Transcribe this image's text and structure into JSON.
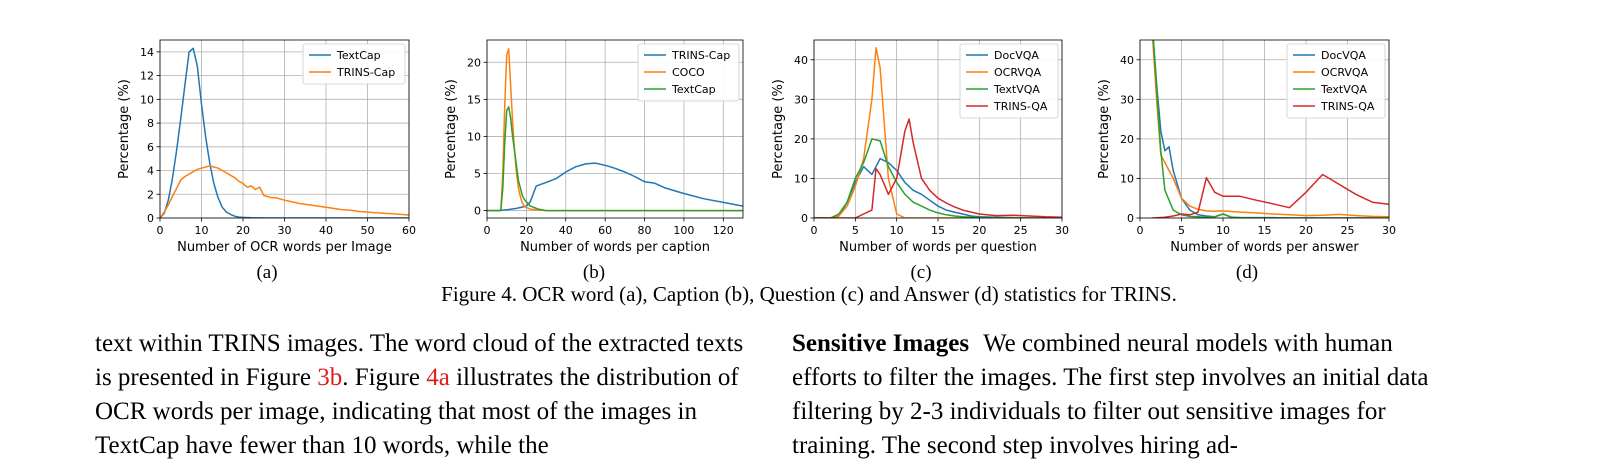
{
  "colors": {
    "blue": "#1f77b4",
    "orange": "#ff7f0e",
    "green": "#2ca02c",
    "red": "#d62728",
    "ref": "#d9211c"
  },
  "chart_data": [
    {
      "type": "line",
      "panel": "a",
      "xlabel": "Number of OCR words per Image",
      "ylabel": "Percentage (%)",
      "xlim": [
        0,
        60
      ],
      "ylim": [
        0,
        15
      ],
      "xticks": [
        0,
        10,
        20,
        30,
        40,
        50,
        60
      ],
      "yticks": [
        0,
        2,
        4,
        6,
        8,
        10,
        12,
        14
      ],
      "grid": true,
      "legend_position": "top-right",
      "series": [
        {
          "name": "TextCap",
          "color": "#1f77b4",
          "x": [
            0,
            1,
            2,
            3,
            4,
            5,
            6,
            7,
            8,
            9,
            10,
            11,
            12,
            13,
            14,
            15,
            16,
            17,
            18,
            19,
            20,
            22,
            24,
            26,
            28,
            30,
            60
          ],
          "y": [
            0,
            0.4,
            1.5,
            3.3,
            5.7,
            8.4,
            11.2,
            14.0,
            14.3,
            12.8,
            9.6,
            6.8,
            4.6,
            2.9,
            1.7,
            0.9,
            0.5,
            0.3,
            0.15,
            0.08,
            0.05,
            0.02,
            0.01,
            0,
            0,
            0,
            0
          ]
        },
        {
          "name": "TRINS-Cap",
          "color": "#ff7f0e",
          "x": [
            0,
            1,
            2,
            3,
            4,
            5,
            6,
            7,
            8,
            9,
            10,
            11,
            12,
            13,
            14,
            15,
            16,
            17,
            18,
            19,
            20,
            21,
            22,
            23,
            24,
            25,
            26,
            27,
            28,
            30,
            32,
            34,
            36,
            38,
            40,
            42,
            44,
            46,
            48,
            50,
            52,
            54,
            56,
            58,
            60
          ],
          "y": [
            0,
            0.5,
            1.1,
            1.8,
            2.5,
            3.2,
            3.5,
            3.7,
            3.9,
            4.1,
            4.2,
            4.3,
            4.4,
            4.3,
            4.2,
            4.0,
            3.8,
            3.6,
            3.4,
            3.1,
            2.9,
            2.6,
            2.7,
            2.4,
            2.6,
            1.9,
            1.8,
            1.7,
            1.7,
            1.5,
            1.35,
            1.2,
            1.1,
            1.0,
            0.9,
            0.8,
            0.7,
            0.65,
            0.55,
            0.5,
            0.45,
            0.4,
            0.35,
            0.3,
            0.25
          ]
        }
      ]
    },
    {
      "type": "line",
      "panel": "b",
      "xlabel": "Number of words per caption",
      "ylabel": "Percentage (%)",
      "xlim": [
        0,
        130
      ],
      "ylim": [
        -1,
        23
      ],
      "xticks": [
        0,
        20,
        40,
        60,
        80,
        100,
        120
      ],
      "yticks": [
        0,
        5,
        10,
        15,
        20
      ],
      "grid": true,
      "legend_position": "top-right",
      "series": [
        {
          "name": "TRINS-Cap",
          "color": "#1f77b4",
          "x": [
            0,
            5,
            10,
            15,
            20,
            22,
            25,
            30,
            35,
            40,
            45,
            50,
            55,
            60,
            65,
            70,
            75,
            80,
            85,
            90,
            95,
            100,
            110,
            120,
            130
          ],
          "y": [
            0,
            0,
            0.1,
            0.3,
            0.6,
            1.2,
            3.3,
            3.8,
            4.3,
            5.2,
            5.9,
            6.3,
            6.4,
            6.1,
            5.7,
            5.2,
            4.6,
            3.9,
            3.7,
            3.1,
            2.7,
            2.3,
            1.6,
            1.1,
            0.6
          ]
        },
        {
          "name": "COCO",
          "color": "#ff7f0e",
          "x": [
            0,
            7,
            8,
            9,
            10,
            11,
            12,
            13,
            14,
            15,
            16,
            17,
            18,
            19,
            20,
            22,
            25,
            30,
            130
          ],
          "y": [
            0,
            0,
            5,
            14,
            21,
            21.8,
            17,
            12,
            8,
            5,
            3,
            1.8,
            1.0,
            0.6,
            0.4,
            0.2,
            0.1,
            0,
            0
          ]
        },
        {
          "name": "TextCap",
          "color": "#2ca02c",
          "x": [
            0,
            7,
            8,
            9,
            10,
            11,
            12,
            13,
            14,
            15,
            16,
            17,
            18,
            19,
            20,
            21,
            22,
            24,
            26,
            28,
            30,
            130
          ],
          "y": [
            0,
            0,
            3,
            9,
            13.5,
            14,
            12.5,
            10,
            8,
            6,
            4,
            3,
            2,
            1.5,
            1.2,
            0.9,
            0.6,
            0.4,
            0.2,
            0.1,
            0,
            0
          ]
        }
      ]
    },
    {
      "type": "line",
      "panel": "c",
      "xlabel": "Number of words per question",
      "ylabel": "Percentage (%)",
      "xlim": [
        0,
        30
      ],
      "ylim": [
        0,
        45
      ],
      "xticks": [
        0,
        5,
        10,
        15,
        20,
        25,
        30
      ],
      "yticks": [
        0,
        10,
        20,
        30,
        40
      ],
      "grid": true,
      "legend_position": "top-right",
      "series": [
        {
          "name": "DocVQA",
          "color": "#1f77b4",
          "x": [
            0,
            2,
            3,
            4,
            5,
            6,
            7,
            8,
            9,
            10,
            11,
            12,
            13,
            14,
            15,
            16,
            17,
            18,
            19,
            20,
            22,
            24,
            26,
            28,
            30
          ],
          "y": [
            0,
            0,
            0.5,
            4,
            9,
            13,
            11,
            15,
            14,
            12,
            9,
            7,
            6,
            4.5,
            3,
            2,
            1.5,
            1,
            0.5,
            0.3,
            0.2,
            0.1,
            0,
            0,
            0
          ]
        },
        {
          "name": "OCRVQA",
          "color": "#ff7f0e",
          "x": [
            0,
            2,
            3,
            4,
            5,
            6,
            7,
            7.5,
            8,
            9,
            10,
            11,
            30
          ],
          "y": [
            0,
            0,
            0.5,
            3,
            8,
            15,
            30,
            43,
            38,
            10,
            1,
            0,
            0
          ]
        },
        {
          "name": "TextVQA",
          "color": "#2ca02c",
          "x": [
            0,
            2,
            3,
            4,
            5,
            6,
            7,
            8,
            9,
            10,
            11,
            12,
            13,
            14,
            15,
            16,
            17,
            18,
            19,
            20,
            22,
            24,
            26,
            28,
            30
          ],
          "y": [
            0,
            0,
            1,
            4,
            10,
            14,
            20,
            19.5,
            13,
            9,
            6,
            4,
            3,
            2,
            1.3,
            0.8,
            0.5,
            0.3,
            0.2,
            0.1,
            0.05,
            0,
            0,
            0,
            0
          ]
        },
        {
          "name": "TRINS-QA",
          "color": "#d62728",
          "x": [
            0,
            5,
            6,
            7,
            7.5,
            8,
            9,
            10,
            11,
            11.5,
            12,
            13,
            14,
            15,
            16,
            17,
            18,
            19,
            20,
            22,
            24,
            26,
            28,
            30
          ],
          "y": [
            0,
            0,
            1,
            2,
            12.5,
            11,
            6,
            10,
            22,
            25,
            19,
            10,
            7,
            5,
            3.8,
            2.8,
            2,
            1.5,
            1,
            0.6,
            0.7,
            0.5,
            0.3,
            0.2
          ]
        }
      ]
    },
    {
      "type": "line",
      "panel": "d",
      "xlabel": "Number of words per answer",
      "ylabel": "Percentage (%)",
      "xlim": [
        0,
        30
      ],
      "ylim": [
        0,
        45
      ],
      "xticks": [
        0,
        5,
        10,
        15,
        20,
        25,
        30
      ],
      "yticks": [
        0,
        10,
        20,
        30,
        40
      ],
      "grid": true,
      "legend_position": "top-right",
      "series": [
        {
          "name": "DocVQA",
          "color": "#1f77b4",
          "x": [
            1.5,
            2,
            2.5,
            3,
            3.5,
            4,
            5,
            6,
            7,
            8,
            9,
            10,
            11,
            12,
            14,
            16,
            18,
            20,
            25,
            30
          ],
          "y": [
            48,
            34,
            22,
            17,
            18,
            12,
            5,
            2,
            0.8,
            0.5,
            0.3,
            1,
            0.2,
            0.1,
            0.1,
            0.1,
            0,
            0,
            0,
            0
          ]
        },
        {
          "name": "OCRVQA",
          "color": "#ff7f0e",
          "x": [
            1.5,
            2,
            2.5,
            3,
            4,
            5,
            6,
            7,
            8,
            9,
            10,
            12,
            14,
            16,
            18,
            20,
            22,
            24,
            26,
            28,
            30
          ],
          "y": [
            46,
            30,
            16,
            14,
            10,
            5,
            3,
            2.2,
            1.8,
            1.7,
            1.8,
            1.5,
            1.3,
            1,
            0.8,
            0.6,
            0.7,
            0.9,
            0.6,
            0.4,
            0.3
          ]
        },
        {
          "name": "TextVQA",
          "color": "#2ca02c",
          "x": [
            1.5,
            2,
            2.5,
            3,
            4,
            5,
            6,
            7,
            8,
            9,
            10,
            11,
            12,
            14,
            16,
            18,
            20,
            25,
            30
          ],
          "y": [
            48,
            33,
            17,
            7,
            2,
            0.8,
            0.4,
            0.3,
            0.2,
            0.3,
            1,
            0.2,
            0.1,
            0,
            0,
            0,
            0,
            0,
            0
          ]
        },
        {
          "name": "TRINS-QA",
          "color": "#d62728",
          "x": [
            1.5,
            3,
            4,
            5,
            6,
            7,
            8,
            9,
            10,
            11,
            12,
            14,
            16,
            18,
            20,
            22,
            24,
            26,
            28,
            30
          ],
          "y": [
            0,
            0.2,
            0.5,
            1,
            0.8,
            1.5,
            10.2,
            6.5,
            5.5,
            5.5,
            5.5,
            4.5,
            3.6,
            2.6,
            6.5,
            11,
            8.5,
            6,
            4,
            3.5
          ]
        }
      ]
    }
  ],
  "subfig_labels": [
    "(a)",
    "(b)",
    "(c)",
    "(d)"
  ],
  "figure_caption": "Figure 4. OCR word (a), Caption (b), Question (c) and Answer (d) statistics for TRINS.",
  "left_column": {
    "t1": "text within TRINS images. The word cloud of the extracted texts is presented in Figure ",
    "ref1": "3b",
    "t2": ". Figure ",
    "ref2": "4a",
    "t3": " illustrates the distribution of OCR words per image, indicating that most of the images in TextCap have fewer than 10 words, while the"
  },
  "right_column": {
    "heading": "Sensitive Images",
    "text": "We combined neural models with human efforts to filter the images. The first step involves an initial data filtering by 2-3 individuals to filter out sensitive images for training. The second step involves hiring ad-"
  }
}
